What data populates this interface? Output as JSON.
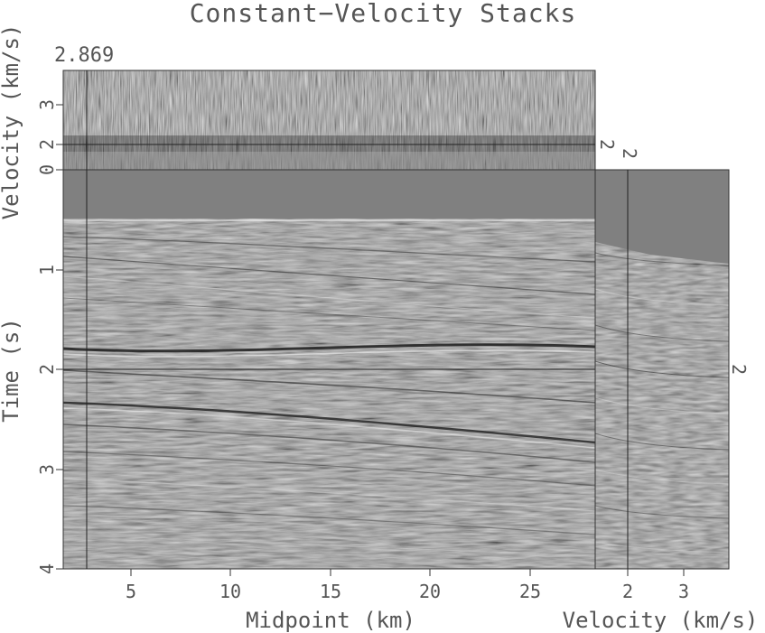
{
  "title": "Constant−Velocity Stacks",
  "corner_value": "2.869",
  "panels": {
    "velocity_slice": {
      "ylabel": "Velocity (km/s)",
      "yticks": [
        "0",
        "2",
        "3"
      ],
      "cursor_value": "2"
    },
    "stack_section": {
      "ylabel": "Time (s)",
      "yticks": [
        "1",
        "2",
        "3",
        "4"
      ],
      "xlabel": "Midpoint (km)",
      "xticks": [
        "5",
        "10",
        "15",
        "20",
        "25"
      ]
    },
    "cmp_gather": {
      "xlabel": "Velocity (km/s)",
      "xticks": [
        "2",
        "3"
      ],
      "cursor_value_top": "2",
      "cursor_value_right": "2"
    }
  },
  "colors": {
    "background_gray": "#808080",
    "frame": "#333333",
    "text": "#555555"
  }
}
